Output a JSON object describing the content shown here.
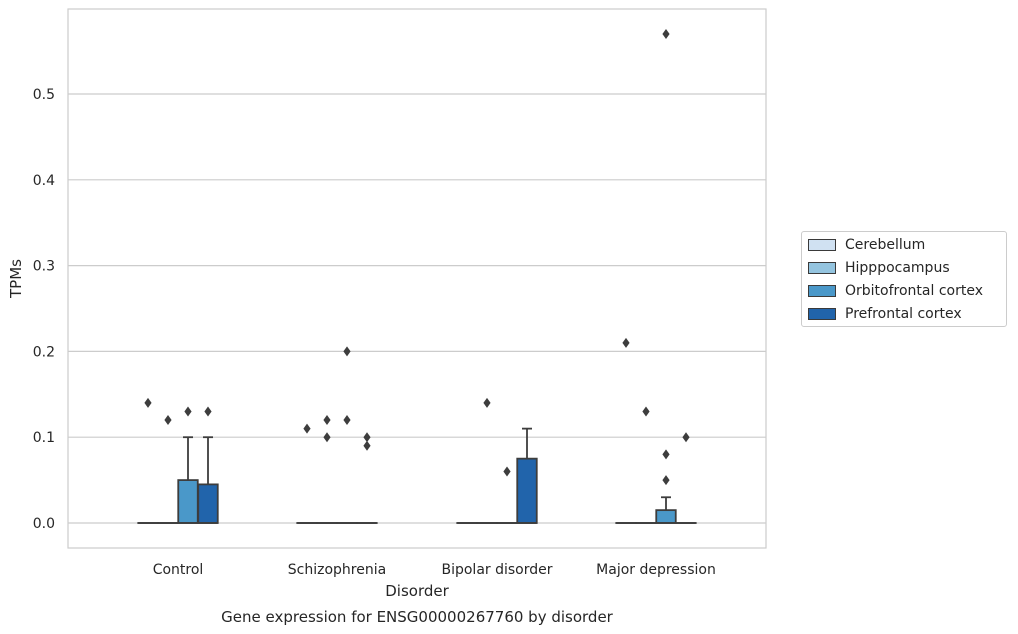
{
  "chart_data": {
    "type": "box",
    "caption": "Gene expression for ENSG00000267760 by disorder",
    "xlabel": "Disorder",
    "ylabel": "TPMs",
    "ylim": [
      -0.028,
      0.6
    ],
    "yticks": [
      0.0,
      0.1,
      0.2,
      0.3,
      0.4,
      0.5
    ],
    "ytick_labels": [
      "0.0",
      "0.1",
      "0.2",
      "0.3",
      "0.4",
      "0.5"
    ],
    "grid": "horizontal",
    "legend_position": "right-outside",
    "categories": [
      "Control",
      "Schizophrenia",
      "Bipolar disorder",
      "Major depression"
    ],
    "series": [
      {
        "name": "Cerebellum",
        "color": "#d0e1f2",
        "boxes": [
          {
            "q1": 0,
            "median": 0,
            "q3": 0,
            "whisker_low": 0,
            "whisker_high": 0,
            "outliers": [
              0.14
            ]
          },
          {
            "q1": 0,
            "median": 0,
            "q3": 0,
            "whisker_low": 0,
            "whisker_high": 0,
            "outliers": [
              0.11
            ]
          },
          {
            "q1": 0,
            "median": 0,
            "q3": 0,
            "whisker_low": 0,
            "whisker_high": 0,
            "outliers": []
          },
          {
            "q1": 0,
            "median": 0,
            "q3": 0,
            "whisker_low": 0,
            "whisker_high": 0,
            "outliers": [
              0.21
            ]
          }
        ]
      },
      {
        "name": "Hipppocampus",
        "color": "#94c4df",
        "boxes": [
          {
            "q1": 0,
            "median": 0,
            "q3": 0,
            "whisker_low": 0,
            "whisker_high": 0,
            "outliers": [
              0.12
            ]
          },
          {
            "q1": 0,
            "median": 0,
            "q3": 0,
            "whisker_low": 0,
            "whisker_high": 0,
            "outliers": [
              0.12,
              0.1
            ]
          },
          {
            "q1": 0,
            "median": 0,
            "q3": 0,
            "whisker_low": 0,
            "whisker_high": 0,
            "outliers": [
              0.14
            ]
          },
          {
            "q1": 0,
            "median": 0,
            "q3": 0,
            "whisker_low": 0,
            "whisker_high": 0,
            "outliers": [
              0.13
            ]
          }
        ]
      },
      {
        "name": "Orbitofrontal cortex",
        "color": "#4a98c9",
        "boxes": [
          {
            "q1": 0,
            "median": 0,
            "q3": 0.05,
            "whisker_low": 0,
            "whisker_high": 0.1,
            "outliers": [
              0.13
            ]
          },
          {
            "q1": 0,
            "median": 0,
            "q3": 0,
            "whisker_low": 0,
            "whisker_high": 0,
            "outliers": [
              0.2,
              0.12
            ]
          },
          {
            "q1": 0,
            "median": 0,
            "q3": 0,
            "whisker_low": 0,
            "whisker_high": 0,
            "outliers": [
              0.06
            ]
          },
          {
            "q1": 0,
            "median": 0,
            "q3": 0.015,
            "whisker_low": 0,
            "whisker_high": 0.03,
            "outliers": [
              0.57,
              0.08,
              0.05
            ]
          }
        ]
      },
      {
        "name": "Prefrontal cortex",
        "color": "#2164ab",
        "boxes": [
          {
            "q1": 0,
            "median": 0,
            "q3": 0.045,
            "whisker_low": 0,
            "whisker_high": 0.1,
            "outliers": [
              0.13
            ]
          },
          {
            "q1": 0,
            "median": 0,
            "q3": 0,
            "whisker_low": 0,
            "whisker_high": 0,
            "outliers": [
              0.1,
              0.09
            ]
          },
          {
            "q1": 0,
            "median": 0,
            "q3": 0.075,
            "whisker_low": 0,
            "whisker_high": 0.11,
            "outliers": []
          },
          {
            "q1": 0,
            "median": 0,
            "q3": 0,
            "whisker_low": 0,
            "whisker_high": 0,
            "outliers": [
              0.1
            ]
          }
        ]
      }
    ]
  }
}
